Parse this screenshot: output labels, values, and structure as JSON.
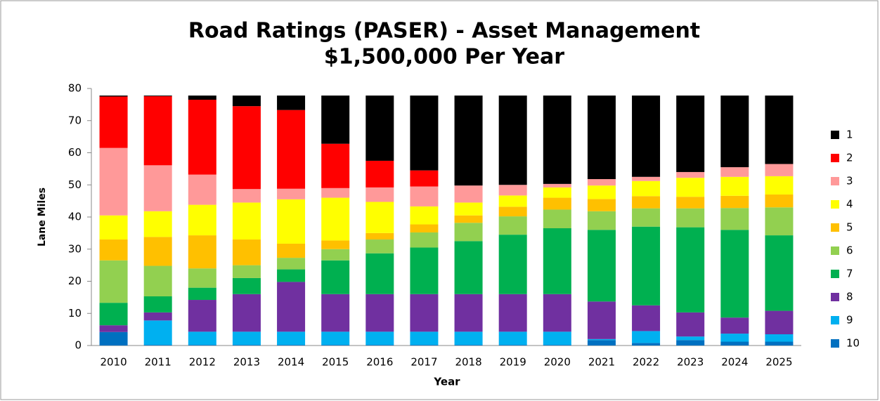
{
  "chart_data": {
    "type": "stacked_bar",
    "title": [
      "Road Ratings (PASER) - Asset Management",
      "$1,500,000 Per Year"
    ],
    "x_label": "Year",
    "y_label": "Lane Miles",
    "categories": [
      "2010",
      "2011",
      "2012",
      "2013",
      "2014",
      "2015",
      "2016",
      "2017",
      "2018",
      "2019",
      "2020",
      "2021",
      "2022",
      "2023",
      "2024",
      "2025"
    ],
    "ylim": [
      0,
      80
    ],
    "yticks": [
      0,
      10,
      20,
      30,
      40,
      50,
      60,
      70,
      80
    ],
    "grid": false,
    "legend": "right",
    "stack_order": "bottom-up from last series",
    "series": [
      {
        "name": "1",
        "color": "#000000",
        "values": [
          0.3,
          0.2,
          1.3,
          3.3,
          4.5,
          15,
          20.3,
          23.3,
          28,
          27.8,
          27.5,
          26,
          25.3,
          23.8,
          22.3,
          21.3
        ]
      },
      {
        "name": "2",
        "color": "#ff0000",
        "values": [
          16,
          21.5,
          23.3,
          25.8,
          24.5,
          13.8,
          8.3,
          5,
          0,
          0,
          0,
          0,
          0,
          0,
          0,
          0
        ]
      },
      {
        "name": "3",
        "color": "#ff9999",
        "values": [
          21,
          14.3,
          9.4,
          4.2,
          3.3,
          3,
          4.5,
          6.2,
          5.3,
          3.3,
          1.1,
          2,
          1.3,
          1.8,
          3,
          3.8
        ]
      },
      {
        "name": "4",
        "color": "#ffff00",
        "values": [
          7.5,
          8,
          9.5,
          11.5,
          13.8,
          13.3,
          9.7,
          5.6,
          4,
          3.5,
          3.2,
          4.2,
          4.7,
          5.9,
          5.9,
          5.7
        ]
      },
      {
        "name": "5",
        "color": "#ffc000",
        "values": [
          6.5,
          9,
          10.3,
          8,
          4.4,
          2.7,
          2,
          2.5,
          2.3,
          3,
          3.7,
          3.8,
          3.8,
          3.6,
          3.8,
          4
        ]
      },
      {
        "name": "6",
        "color": "#92d050",
        "values": [
          13.2,
          9.5,
          6,
          4,
          3.6,
          3.5,
          4.3,
          4.7,
          5.7,
          5.7,
          5.8,
          5.8,
          5.7,
          5.9,
          6.8,
          8.7
        ]
      },
      {
        "name": "7",
        "color": "#00b050",
        "values": [
          7,
          5,
          3.8,
          5,
          3.9,
          10.5,
          12.7,
          14.5,
          16.5,
          18.5,
          20.5,
          22.3,
          24.5,
          26.5,
          27.3,
          23.5
        ]
      },
      {
        "name": "8",
        "color": "#7030a0",
        "values": [
          2.1,
          2.5,
          9.9,
          11.7,
          15.5,
          11.7,
          11.7,
          11.7,
          11.7,
          11.7,
          11.7,
          11.7,
          8,
          7.5,
          5,
          7.3
        ]
      },
      {
        "name": "9",
        "color": "#00b0f0",
        "values": [
          0,
          7.6,
          4.1,
          4.1,
          4.1,
          4.1,
          4.1,
          4.1,
          4.1,
          4.1,
          4.1,
          0.3,
          3.7,
          1.1,
          2.5,
          2.3
        ]
      },
      {
        "name": "10",
        "color": "#0070c0",
        "values": [
          4.2,
          0.2,
          0.2,
          0.2,
          0.2,
          0.2,
          0.2,
          0.2,
          0.2,
          0.2,
          0.2,
          1.7,
          0.8,
          1.7,
          1.2,
          1.2
        ]
      }
    ]
  }
}
